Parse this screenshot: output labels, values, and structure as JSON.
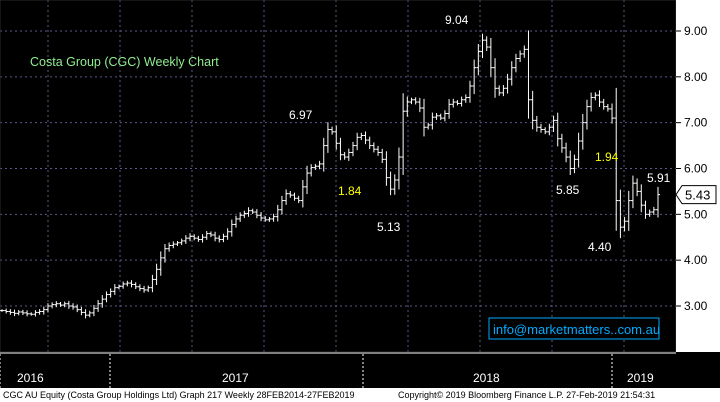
{
  "colors": {
    "background": "#000000",
    "plot_border": "#2a2a2a",
    "grid": "#5a5a88",
    "price_bars": "#ffffff",
    "annotation_white": "#ffffff",
    "annotation_yellow": "#ffff00",
    "title": "#90ee90",
    "axis_panel": "#ffffff",
    "last_price_box": "#ffffff",
    "contact_border": "#00aaff",
    "contact_text": "#00aaff",
    "footer_bg": "#ffffff"
  },
  "chart_data": {
    "type": "ohlc",
    "title": "Costa Group (CGC) Weekly Chart",
    "ylim": [
      2.0,
      9.5
    ],
    "y_ticks": [
      "3.00",
      "4.00",
      "5.00",
      "6.00",
      "7.00",
      "8.00",
      "9.00"
    ],
    "last_price": "5.43",
    "x_labels": [
      "2016",
      "2017",
      "2018",
      "2019"
    ],
    "grid": true,
    "series": [
      {
        "values": [
          2.9,
          2.88,
          2.86,
          2.84,
          2.87,
          2.85,
          2.83,
          2.82,
          2.86,
          2.88,
          2.92,
          3.0,
          3.03,
          3.05,
          3.02,
          3.05,
          3.0,
          2.98,
          2.92,
          2.86,
          2.8,
          2.85,
          2.95,
          3.05,
          3.15,
          3.25,
          3.32,
          3.4,
          3.43,
          3.48,
          3.5,
          3.47,
          3.42,
          3.38,
          3.35,
          3.4,
          3.58,
          3.8,
          4.05,
          4.25,
          4.32,
          4.35,
          4.38,
          4.42,
          4.48,
          4.52,
          4.48,
          4.45,
          4.5,
          4.58,
          4.55,
          4.48,
          4.45,
          4.52,
          4.62,
          4.78,
          4.9,
          4.98,
          5.02,
          5.08,
          5.05,
          4.98,
          4.92,
          4.88,
          4.9,
          4.95,
          5.1,
          5.3,
          5.45,
          5.42,
          5.35,
          5.3,
          5.6,
          5.9,
          6.02,
          6.05,
          6.1,
          6.5,
          6.85,
          6.8,
          6.55,
          6.3,
          6.25,
          6.35,
          6.5,
          6.68,
          6.72,
          6.62,
          6.5,
          6.42,
          6.35,
          6.2,
          5.8,
          5.55,
          5.75,
          6.25,
          7.25,
          7.45,
          7.5,
          7.45,
          7.32,
          6.9,
          6.95,
          7.12,
          7.15,
          7.1,
          7.2,
          7.4,
          7.45,
          7.42,
          7.5,
          7.55,
          7.8,
          8.2,
          8.55,
          8.8,
          8.65,
          8.2,
          7.75,
          7.65,
          7.75,
          7.95,
          8.2,
          8.4,
          8.5,
          8.6,
          7.5,
          7.05,
          6.9,
          6.85,
          6.8,
          6.9,
          7.05,
          6.65,
          6.45,
          6.25,
          6.0,
          6.2,
          6.6,
          7.0,
          7.35,
          7.55,
          7.6,
          7.45,
          7.35,
          7.3,
          7.1,
          5.3,
          4.72,
          4.85,
          5.3,
          5.68,
          5.5,
          5.2,
          5.0,
          5.05,
          5.1,
          5.43
        ]
      }
    ],
    "annotations": [
      {
        "text": "9.04",
        "color": "white"
      },
      {
        "text": "6.97",
        "color": "white"
      },
      {
        "text": "1.84",
        "color": "yellow"
      },
      {
        "text": "5.13",
        "color": "white"
      },
      {
        "text": "5.85",
        "color": "white"
      },
      {
        "text": "1.94",
        "color": "yellow"
      },
      {
        "text": "5.91",
        "color": "white"
      },
      {
        "text": "4.40",
        "color": "white"
      }
    ]
  },
  "contact": "info@marketmatters..com.au",
  "footer": {
    "left": "CGC AU Equity (Costa Group Holdings Ltd) Graph 217  Weekly 28FEB2014-27FEB2019",
    "right": "Copyright© 2019 Bloomberg Finance L.P.      27-Feb-2019 21:54:31"
  }
}
